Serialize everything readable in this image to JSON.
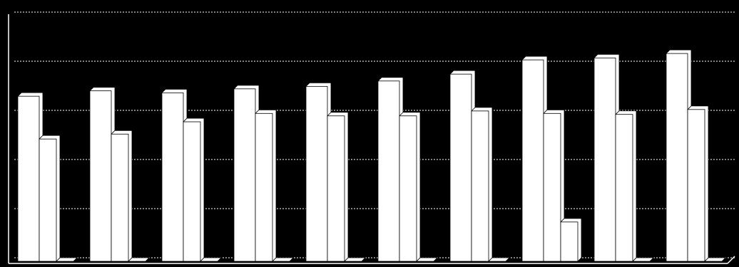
{
  "chart_data": {
    "type": "bar",
    "series": [
      {
        "color": "#ffffff",
        "values": [
          3.36,
          3.47,
          3.43,
          3.51,
          3.56,
          3.67,
          3.81,
          4.1,
          4.14,
          4.23
        ]
      },
      {
        "color": "#ffffff",
        "values": [
          2.49,
          2.59,
          2.84,
          3.01,
          2.96,
          2.96,
          3.06,
          3.01,
          2.99,
          3.09
        ]
      },
      {
        "color": "#ffffff",
        "values": [
          0,
          0,
          0,
          0,
          0,
          0,
          0,
          0.8,
          0,
          0
        ]
      }
    ],
    "ylim": [
      0,
      5
    ],
    "yticks": [
      0,
      1,
      2,
      3,
      4,
      5
    ],
    "grid": true,
    "grid_color": "#ffffff",
    "background": "#000000"
  }
}
